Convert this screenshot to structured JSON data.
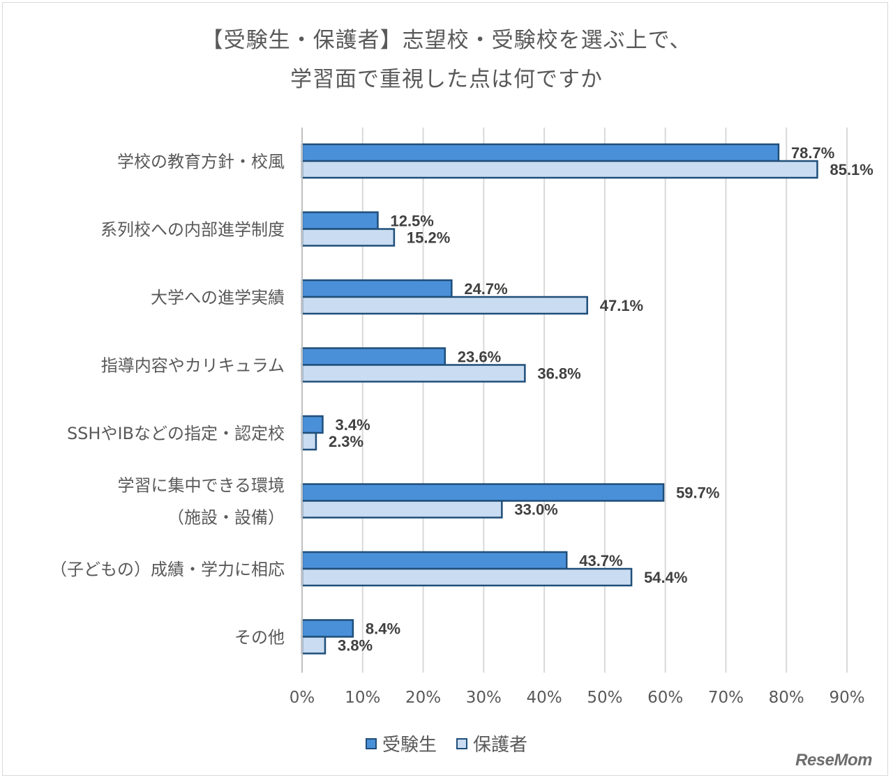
{
  "chart_data": {
    "type": "bar",
    "orientation": "horizontal",
    "title": "【受験生・保護者】志望校・受験校を選ぶ上で、",
    "subtitle": "学習面で重視した点は何ですか",
    "categories": [
      [
        "学校の教育方針・校風"
      ],
      [
        "系列校への内部進学制度"
      ],
      [
        "大学への進学実績"
      ],
      [
        "指導内容やカリキュラム"
      ],
      [
        "SSHやIBなどの指定・認定校"
      ],
      [
        "学習に集中できる環境",
        "（施設・設備）"
      ],
      [
        "（子どもの）成績・学力に相応"
      ],
      [
        "その他"
      ]
    ],
    "series": [
      {
        "name": "受験生",
        "color": "#4a90d9",
        "values": [
          78.7,
          12.5,
          24.7,
          23.6,
          3.4,
          59.7,
          43.7,
          8.4
        ],
        "labels": [
          "78.7%",
          "12.5%",
          "24.7%",
          "23.6%",
          "3.4%",
          "59.7%",
          "43.7%",
          "8.4%"
        ]
      },
      {
        "name": "保護者",
        "color": "#c9dcf1",
        "values": [
          85.1,
          15.2,
          47.1,
          36.8,
          2.3,
          33.0,
          54.4,
          3.8
        ],
        "labels": [
          "85.1%",
          "15.2%",
          "47.1%",
          "36.8%",
          "2.3%",
          "33.0%",
          "54.4%",
          "3.8%"
        ]
      }
    ],
    "xlim": [
      0,
      90
    ],
    "xticks": [
      0,
      10,
      20,
      30,
      40,
      50,
      60,
      70,
      80,
      90
    ],
    "xtick_labels": [
      "0%",
      "10%",
      "20%",
      "30%",
      "40%",
      "50%",
      "60%",
      "70%",
      "80%",
      "90%"
    ],
    "grid": "vertical",
    "legend_position": "bottom",
    "bar_border_color": "#1f4e79"
  },
  "watermark": "ReseMom"
}
